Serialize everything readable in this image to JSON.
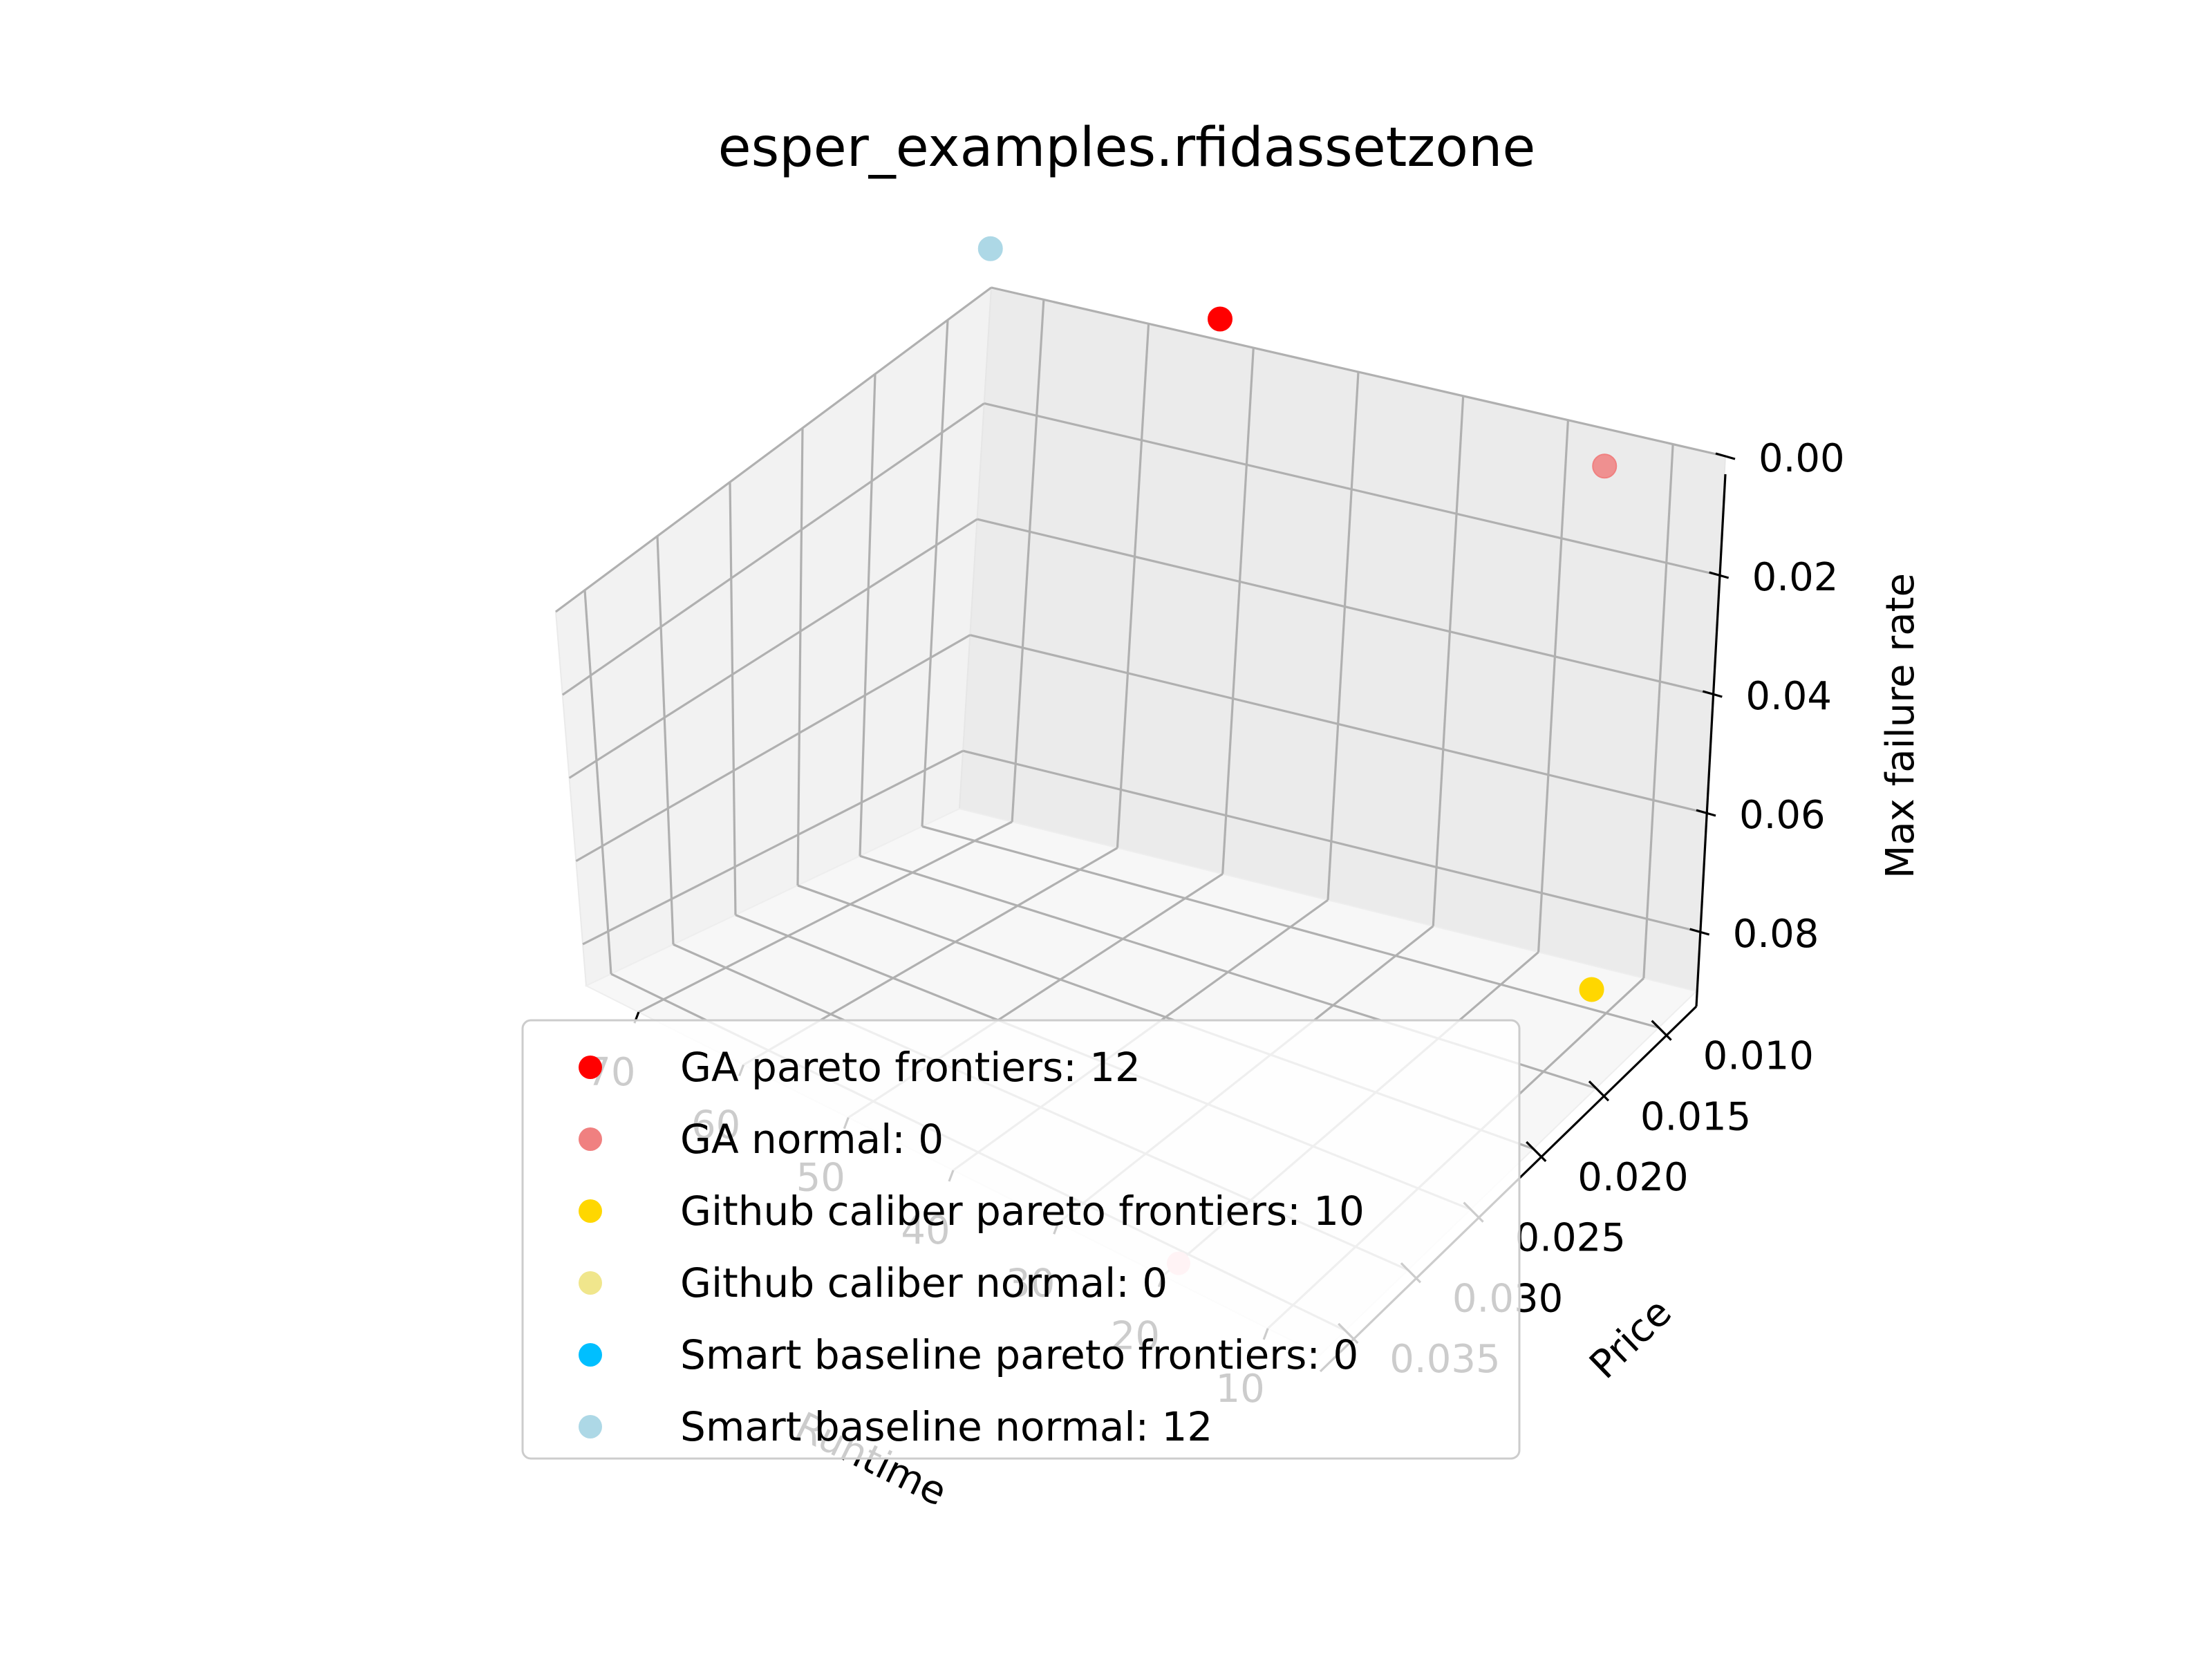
{
  "chart_data": {
    "type": "scatter",
    "title": "esper_examples.rfidassetzone",
    "xlabel": "Runtime",
    "ylabel": "Price",
    "zlabel": "Max failure rate",
    "x_ticks": [
      "70",
      "60",
      "50",
      "40",
      "30",
      "20",
      "10"
    ],
    "y_ticks": [
      "0.010",
      "0.015",
      "0.020",
      "0.025",
      "0.030",
      "0.035"
    ],
    "z_ticks": [
      "0.00",
      "0.02",
      "0.04",
      "0.06",
      "0.08"
    ],
    "xlim": [
      5,
      75
    ],
    "ylim": [
      0.007,
      0.037
    ],
    "zlim": [
      0.0,
      0.09
    ],
    "z_inverted": true,
    "legend_position": "lower-center",
    "series": [
      {
        "name": "GA pareto frontiers: 12",
        "color": "#ff0000",
        "points": [
          {
            "x": 52,
            "y": 0.008,
            "z": -0.006
          }
        ]
      },
      {
        "name": "GA normal: 0",
        "color": "#f08080",
        "points": [
          {
            "x": 15,
            "y": 0.008,
            "z": 0.004
          }
        ]
      },
      {
        "name": "Github caliber pareto frontiers: 10",
        "color": "#ffd700",
        "points": [
          {
            "x": 8,
            "y": 0.012,
            "z": 0.084
          }
        ]
      },
      {
        "name": "Github caliber normal: 0",
        "color": "#f0e68c",
        "points": []
      },
      {
        "name": "Smart baseline pareto frontiers: 0",
        "color": "#00bfff",
        "points": []
      },
      {
        "name": "Smart baseline normal: 12",
        "color": "#add8e6",
        "points": [
          {
            "x": 74,
            "y": 0.008,
            "z": -0.009
          }
        ]
      }
    ],
    "extra_points": [
      {
        "color": "#ffc0cb",
        "x": 14,
        "y": 0.036,
        "z": 0.089
      }
    ]
  }
}
